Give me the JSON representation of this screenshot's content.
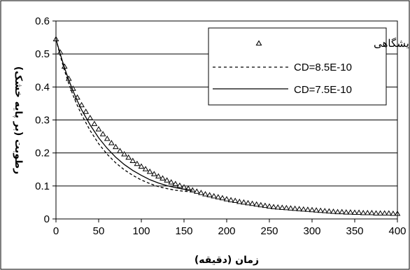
{
  "chart_data": {
    "type": "line",
    "xlabel": "زمان (دقیقه)",
    "ylabel": "رطوبت (بر پایه خشک)",
    "xlim": [
      0,
      400
    ],
    "ylim": [
      0,
      0.6
    ],
    "xticks": [
      "0",
      "50",
      "100",
      "150",
      "200",
      "250",
      "300",
      "350",
      "400"
    ],
    "yticks": [
      "0",
      "0.1",
      "0.2",
      "0.3",
      "0.4",
      "0.5",
      "0.6"
    ],
    "grid": "horizontal",
    "legend_position": "top-right",
    "series": [
      {
        "name": "داده‌های آزمایشگاهی",
        "style": "triangle-markers",
        "color": "#000000",
        "x": [
          0,
          5,
          10,
          15,
          20,
          25,
          30,
          35,
          40,
          45,
          50,
          55,
          60,
          65,
          70,
          75,
          80,
          85,
          90,
          95,
          100,
          105,
          110,
          115,
          120,
          125,
          130,
          135,
          140,
          145,
          150,
          155,
          160,
          165,
          170,
          175,
          180,
          185,
          190,
          195,
          200,
          205,
          210,
          215,
          220,
          225,
          230,
          235,
          240,
          245,
          250,
          255,
          260,
          265,
          270,
          275,
          280,
          285,
          290,
          295,
          300,
          305,
          310,
          315,
          320,
          325,
          330,
          335,
          340,
          345,
          350,
          355,
          360,
          365,
          370,
          375,
          380,
          385,
          390,
          395,
          400
        ],
        "y": [
          0.545,
          0.505,
          0.462,
          0.425,
          0.395,
          0.368,
          0.345,
          0.325,
          0.306,
          0.288,
          0.272,
          0.257,
          0.243,
          0.23,
          0.218,
          0.206,
          0.196,
          0.186,
          0.176,
          0.167,
          0.159,
          0.151,
          0.143,
          0.136,
          0.129,
          0.123,
          0.117,
          0.111,
          0.106,
          0.101,
          0.096,
          0.092,
          0.087,
          0.083,
          0.079,
          0.075,
          0.072,
          0.069,
          0.066,
          0.063,
          0.06,
          0.057,
          0.055,
          0.052,
          0.05,
          0.048,
          0.046,
          0.044,
          0.042,
          0.04,
          0.038,
          0.036,
          0.035,
          0.034,
          0.033,
          0.032,
          0.031,
          0.03,
          0.029,
          0.028,
          0.027,
          0.026,
          0.025,
          0.024,
          0.023,
          0.022,
          0.021,
          0.021,
          0.02,
          0.02,
          0.019,
          0.019,
          0.018,
          0.018,
          0.018,
          0.017,
          0.017,
          0.017,
          0.017,
          0.016,
          0.016
        ]
      },
      {
        "name": "CD=8.5E-10",
        "style": "dashed",
        "color": "#000000",
        "x": [
          0,
          5,
          10,
          15,
          20,
          25,
          30,
          40,
          50,
          60,
          70,
          80,
          90,
          100,
          110,
          120,
          130,
          140,
          150,
          160
        ],
        "y": [
          0.545,
          0.495,
          0.45,
          0.41,
          0.375,
          0.344,
          0.316,
          0.268,
          0.228,
          0.196,
          0.17,
          0.149,
          0.132,
          0.118,
          0.107,
          0.098,
          0.092,
          0.087,
          0.084,
          0.082
        ]
      },
      {
        "name": "CD=7.5E-10",
        "style": "solid",
        "color": "#000000",
        "x": [
          0,
          5,
          10,
          15,
          20,
          25,
          30,
          40,
          50,
          60,
          70,
          80,
          90,
          100,
          110,
          120,
          130,
          140,
          150,
          160
        ],
        "y": [
          0.545,
          0.5,
          0.458,
          0.421,
          0.388,
          0.358,
          0.331,
          0.285,
          0.246,
          0.214,
          0.187,
          0.165,
          0.147,
          0.132,
          0.119,
          0.109,
          0.101,
          0.095,
          0.09,
          0.087
        ]
      }
    ]
  }
}
